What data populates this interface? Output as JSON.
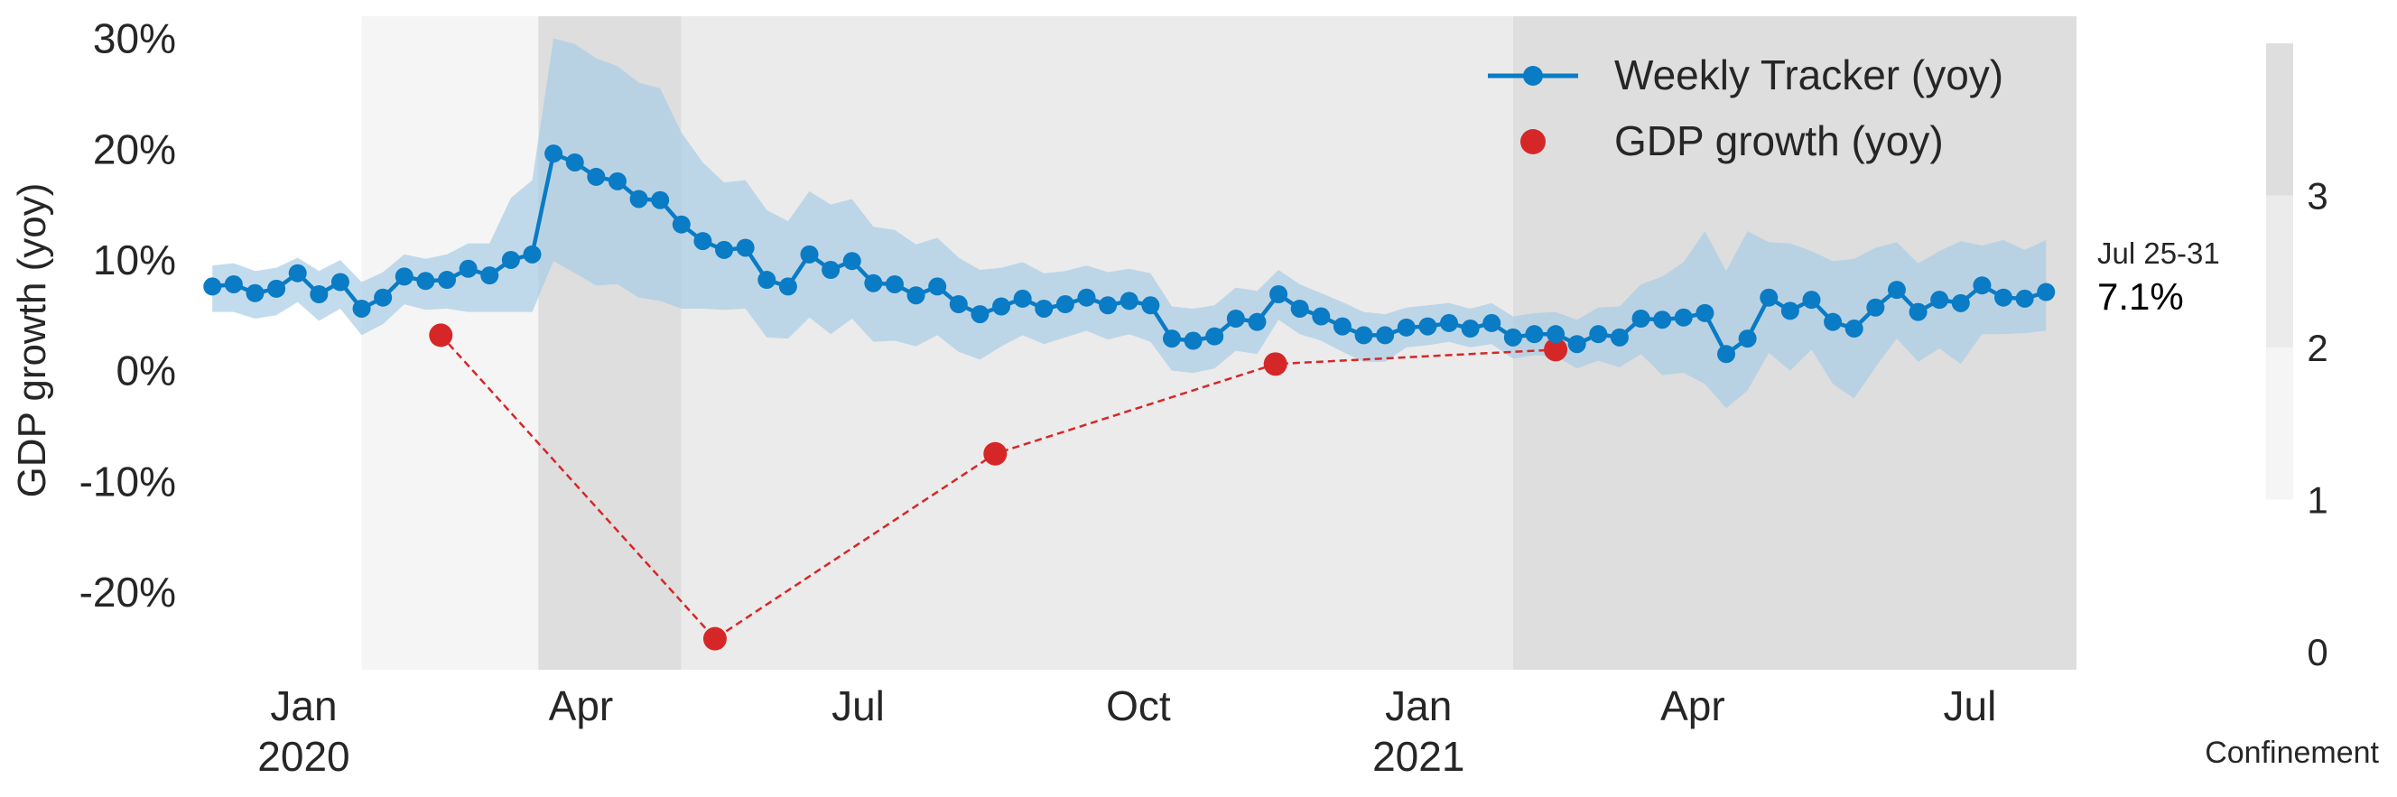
{
  "chart_data": {
    "type": "line",
    "ylabel": "GDP growth (yoy)",
    "ylim": [
      -27,
      32
    ],
    "y_ticks": [
      {
        "v": 30,
        "label": "30%"
      },
      {
        "v": 20,
        "label": "20%"
      },
      {
        "v": 10,
        "label": "10%"
      },
      {
        "v": 0,
        "label": "0%"
      },
      {
        "v": -10,
        "label": "-10%"
      },
      {
        "v": -20,
        "label": "-20%"
      }
    ],
    "x_range": [
      "2019-11-26",
      "2021-08-05"
    ],
    "x_ticks": [
      {
        "date": "2020-01-01",
        "label": "Jan",
        "sub": "2020"
      },
      {
        "date": "2020-04-01",
        "label": "Apr",
        "sub": ""
      },
      {
        "date": "2020-07-01",
        "label": "Jul",
        "sub": ""
      },
      {
        "date": "2020-10-01",
        "label": "Oct",
        "sub": ""
      },
      {
        "date": "2021-01-01",
        "label": "Jan",
        "sub": "2021"
      },
      {
        "date": "2021-04-01",
        "label": "Apr",
        "sub": ""
      },
      {
        "date": "2021-07-01",
        "label": "Jul",
        "sub": ""
      }
    ],
    "grid": false,
    "legend": {
      "placement": "top-right",
      "entries": [
        {
          "label": "Weekly Tracker (yoy)",
          "color": "#0a7bc5",
          "marker": "line-circle"
        },
        {
          "label": "GDP growth (yoy)",
          "color": "#d62728",
          "marker": "circle"
        }
      ]
    },
    "confinement": {
      "label": "Confinement",
      "levels": [
        0,
        1,
        2,
        3
      ],
      "colors": {
        "1": "#f5f5f5",
        "2": "#ebebeb",
        "3": "#dedede"
      },
      "scale_colors": [
        {
          "from": 1,
          "to": 2,
          "color": "#f5f5f5"
        },
        {
          "from": 2,
          "to": 3,
          "color": "#ebebeb"
        },
        {
          "from": 3,
          "to": 4,
          "color": "#dedede"
        }
      ],
      "periods": [
        {
          "start": "2020-01-20",
          "end": "2020-03-18",
          "level": 1
        },
        {
          "start": "2020-03-18",
          "end": "2020-05-04",
          "level": 3
        },
        {
          "start": "2020-05-04",
          "end": "2021-02-01",
          "level": 2
        },
        {
          "start": "2021-02-01",
          "end": "2021-08-05",
          "level": 3
        }
      ]
    },
    "series": [
      {
        "name": "Weekly Tracker (yoy)",
        "color": "#0a7bc5",
        "band_color": "#a9cde5",
        "start_date": "2019-12-02",
        "step_days": 7,
        "values": [
          7.6,
          7.8,
          7.0,
          7.4,
          8.8,
          6.9,
          8.0,
          5.6,
          6.6,
          8.5,
          8.1,
          8.2,
          9.2,
          8.6,
          10.0,
          10.5,
          19.6,
          18.8,
          17.5,
          17.1,
          15.5,
          15.4,
          13.2,
          11.7,
          10.9,
          11.1,
          8.2,
          7.6,
          10.5,
          9.1,
          9.9,
          7.9,
          7.8,
          6.8,
          7.6,
          6.0,
          5.1,
          5.8,
          6.5,
          5.6,
          6.0,
          6.6,
          5.9,
          6.3,
          5.9,
          2.9,
          2.7,
          3.1,
          4.7,
          4.4,
          6.9,
          5.6,
          4.9,
          4.0,
          3.2,
          3.2,
          3.9,
          4.0,
          4.3,
          3.8,
          4.3,
          3.0,
          3.3,
          3.3,
          2.4,
          3.3,
          3.0,
          4.7,
          4.6,
          4.8,
          5.2,
          1.5,
          2.9,
          6.6,
          5.4,
          6.4,
          4.4,
          3.8,
          5.7,
          7.3,
          5.3,
          6.4,
          6.1,
          7.7,
          6.6,
          6.5,
          7.1
        ],
        "upper": [
          9.5,
          9.7,
          9.0,
          9.3,
          10.2,
          9.0,
          10.0,
          8.0,
          8.9,
          10.5,
          10.1,
          10.5,
          11.5,
          11.5,
          15.6,
          17.2,
          30.0,
          29.5,
          28.2,
          27.5,
          26.0,
          25.5,
          21.5,
          18.8,
          17.0,
          17.2,
          14.5,
          13.5,
          16.2,
          15.0,
          15.5,
          13.0,
          12.7,
          11.4,
          12.0,
          10.2,
          9.1,
          9.3,
          9.8,
          8.8,
          9.0,
          9.5,
          8.9,
          9.2,
          8.8,
          5.8,
          5.6,
          5.9,
          7.5,
          7.2,
          9.1,
          7.8,
          7.0,
          6.2,
          5.3,
          5.1,
          5.7,
          5.9,
          6.1,
          5.6,
          6.1,
          4.9,
          5.2,
          5.3,
          4.6,
          5.7,
          5.8,
          7.8,
          8.5,
          9.8,
          12.6,
          9.0,
          12.6,
          11.6,
          11.5,
          10.8,
          9.9,
          10.1,
          11.1,
          11.6,
          9.7,
          10.8,
          11.7,
          11.3,
          11.8,
          10.9,
          11.8
        ],
        "lower": [
          5.3,
          5.3,
          4.7,
          5.0,
          6.2,
          4.5,
          5.6,
          3.2,
          4.2,
          6.0,
          5.5,
          5.6,
          5.3,
          5.3,
          5.3,
          5.3,
          9.9,
          8.8,
          7.7,
          7.8,
          6.6,
          6.3,
          5.6,
          5.6,
          5.5,
          5.6,
          3.0,
          2.9,
          4.8,
          3.3,
          4.7,
          2.6,
          2.7,
          2.2,
          3.2,
          1.7,
          1.0,
          2.2,
          3.2,
          2.4,
          3.0,
          3.6,
          2.8,
          3.3,
          2.6,
          0.0,
          -0.2,
          0.2,
          1.8,
          1.5,
          4.6,
          3.3,
          2.7,
          1.7,
          0.8,
          0.8,
          2.1,
          2.3,
          2.6,
          2.1,
          2.4,
          1.1,
          1.4,
          1.3,
          0.2,
          0.9,
          0.3,
          1.5,
          -0.4,
          -0.2,
          -1.2,
          -3.4,
          -1.8,
          1.6,
          0.0,
          1.9,
          -1.2,
          -2.5,
          0.3,
          2.9,
          0.8,
          2.0,
          0.6,
          3.3,
          3.3,
          3.4,
          3.6
        ]
      },
      {
        "name": "GDP growth (yoy)",
        "color": "#d62728",
        "points": [
          {
            "date": "2020-02-15",
            "value": 3.2
          },
          {
            "date": "2020-05-15",
            "value": -24.2
          },
          {
            "date": "2020-08-15",
            "value": -7.5
          },
          {
            "date": "2020-11-15",
            "value": 0.6
          },
          {
            "date": "2021-02-15",
            "value": 1.9
          }
        ]
      }
    ],
    "annotation": {
      "label": "Jul 25-31",
      "value": "7.1%"
    }
  }
}
